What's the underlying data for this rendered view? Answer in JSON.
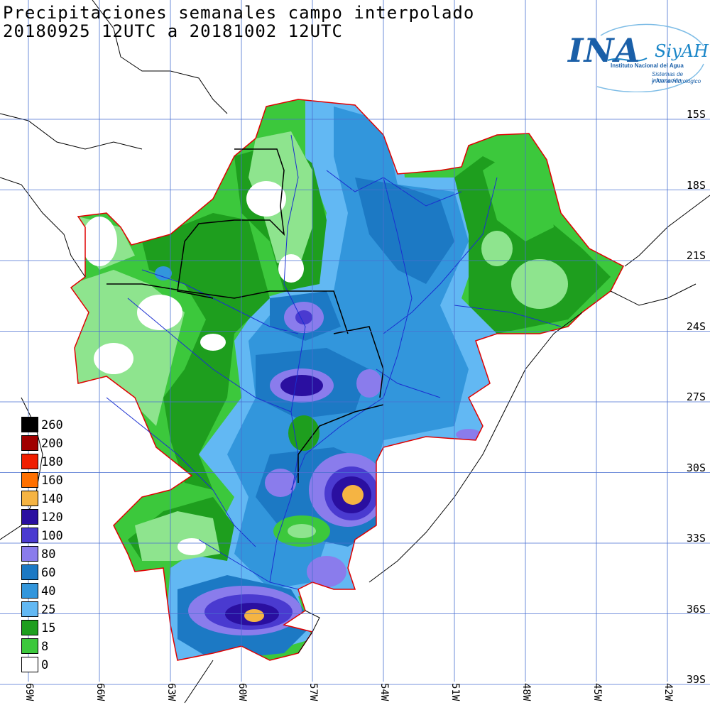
{
  "title": {
    "line1": "Precipitaciones semanales campo interpolado",
    "line2": "20180925 12UTC a 20181002 12UTC"
  },
  "logo": {
    "main": "INA",
    "brand": "SiyAH",
    "subtitle": "Instituto Nacional del Agua",
    "tagline1": "Sistemas de información",
    "tagline2": "y Alerta Hidrológico",
    "colors": {
      "primary": "#1a5fa8",
      "accent": "#1a86c8"
    }
  },
  "legend": {
    "units": "",
    "items": [
      {
        "label": "260",
        "color": "#000000"
      },
      {
        "label": "200",
        "color": "#a00000"
      },
      {
        "label": "180",
        "color": "#f01e00"
      },
      {
        "label": "160",
        "color": "#ff7000"
      },
      {
        "label": "140",
        "color": "#f5b443"
      },
      {
        "label": "120",
        "color": "#2a0fa0"
      },
      {
        "label": "100",
        "color": "#4a3ad0"
      },
      {
        "label": "80",
        "color": "#8a7cec"
      },
      {
        "label": "60",
        "color": "#1c79c4"
      },
      {
        "label": "40",
        "color": "#3296dc"
      },
      {
        "label": "25",
        "color": "#62b8f3"
      },
      {
        "label": "15",
        "color": "#1e9e1e"
      },
      {
        "label": "8",
        "color": "#3cc83c"
      },
      {
        "label": "0",
        "color": "#ffffff"
      }
    ]
  },
  "grid": {
    "latitudes": [
      "15S",
      "18S",
      "21S",
      "24S",
      "27S",
      "30S",
      "33S",
      "36S",
      "39S"
    ],
    "longitudes": [
      "69W",
      "66W",
      "63W",
      "60W",
      "57W",
      "54W",
      "51W",
      "48W",
      "45W",
      "42W"
    ]
  },
  "colors": {
    "grid": "#4a6fd0",
    "basin_outline": "#e00000",
    "rivers": "#1a2fd0",
    "borders": "#000000"
  }
}
